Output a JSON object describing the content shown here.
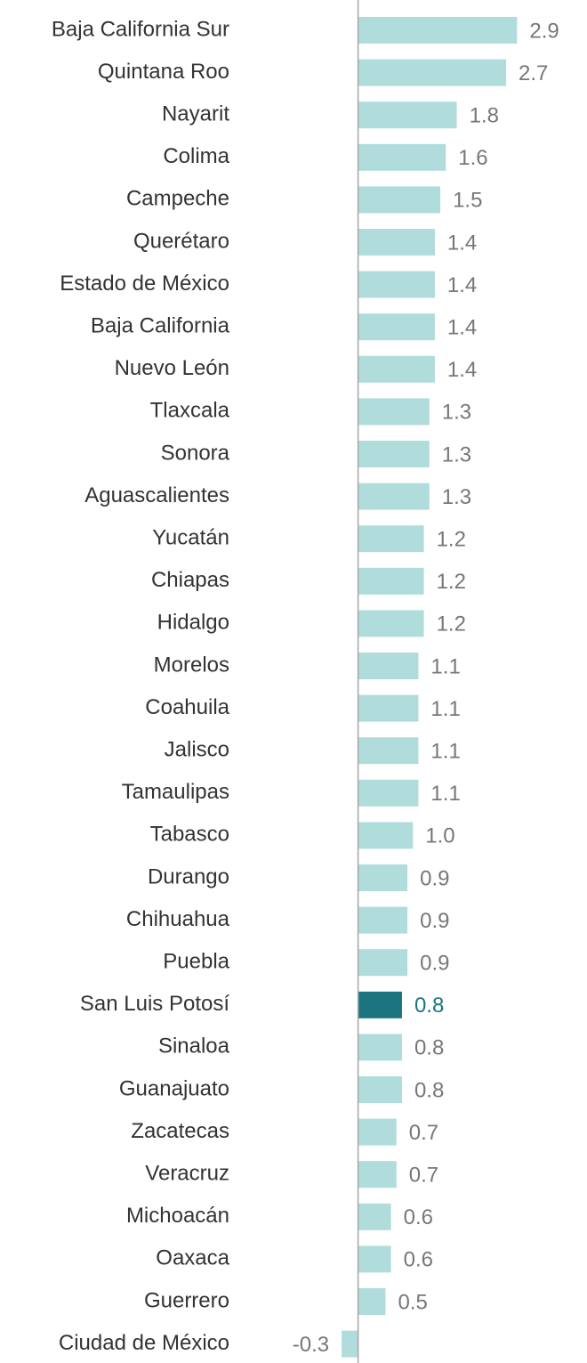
{
  "chart_data": {
    "type": "hbar",
    "categories": [
      "Baja California Sur",
      "Quintana Roo",
      "Nayarit",
      "Colima",
      "Campeche",
      "Querétaro",
      "Estado de México",
      "Baja California",
      "Nuevo León",
      "Tlaxcala",
      "Sonora",
      "Aguascalientes",
      "Yucatán",
      "Chiapas",
      "Hidalgo",
      "Morelos",
      "Coahuila",
      "Jalisco",
      "Tamaulipas",
      "Tabasco",
      "Durango",
      "Chihuahua",
      "Puebla",
      "San Luis Potosí",
      "Sinaloa",
      "Guanajuato",
      "Zacatecas",
      "Veracruz",
      "Michoacán",
      "Oaxaca",
      "Guerrero",
      "Ciudad de México"
    ],
    "values": [
      2.9,
      2.7,
      1.8,
      1.6,
      1.5,
      1.4,
      1.4,
      1.4,
      1.4,
      1.3,
      1.3,
      1.3,
      1.2,
      1.2,
      1.2,
      1.1,
      1.1,
      1.1,
      1.1,
      1.0,
      0.9,
      0.9,
      0.9,
      0.8,
      0.8,
      0.8,
      0.7,
      0.7,
      0.6,
      0.6,
      0.5,
      -0.3
    ],
    "value_labels": [
      "2.9",
      "2.7",
      "1.8",
      "1.6",
      "1.5",
      "1.4",
      "1.4",
      "1.4",
      "1.4",
      "1.3",
      "1.3",
      "1.3",
      "1.2",
      "1.2",
      "1.2",
      "1.1",
      "1.1",
      "1.1",
      "1.1",
      "1.0",
      "0.9",
      "0.9",
      "0.9",
      "0.8",
      "0.8",
      "0.8",
      "0.7",
      "0.7",
      "0.6",
      "0.6",
      "0.5",
      "-0.3"
    ],
    "colors": [
      "#b0dcdc",
      "#b0dcdc",
      "#b0dcdc",
      "#b0dcdc",
      "#b0dcdc",
      "#b0dcdc",
      "#b0dcdc",
      "#b0dcdc",
      "#b0dcdc",
      "#b0dcdc",
      "#b0dcdc",
      "#b0dcdc",
      "#b0dcdc",
      "#b0dcdc",
      "#b0dcdc",
      "#b0dcdc",
      "#b0dcdc",
      "#b0dcdc",
      "#b0dcdc",
      "#b0dcdc",
      "#b0dcdc",
      "#b0dcdc",
      "#b0dcdc",
      "#1b7480",
      "#b0dcdc",
      "#b0dcdc",
      "#b0dcdc",
      "#b0dcdc",
      "#b0dcdc",
      "#b0dcdc",
      "#b0dcdc",
      "#b0dcdc"
    ],
    "xlim": [
      -1,
      3.9
    ]
  }
}
